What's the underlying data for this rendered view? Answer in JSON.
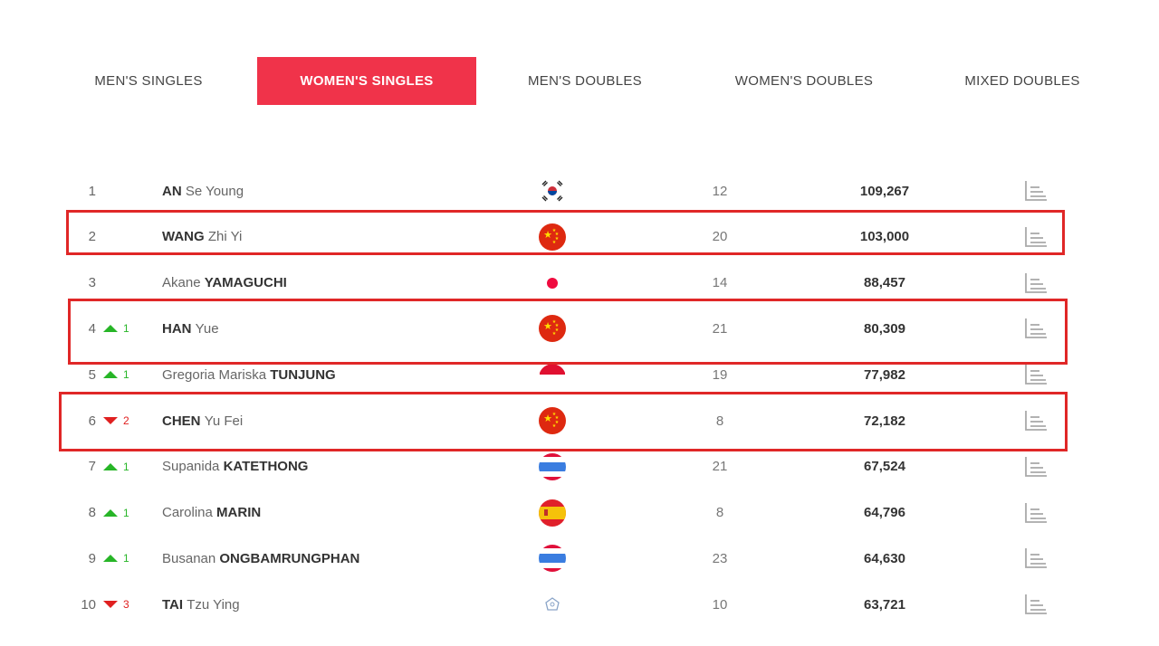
{
  "tabs": [
    {
      "label": "MEN'S SINGLES",
      "active": false
    },
    {
      "label": "WOMEN'S SINGLES",
      "active": true
    },
    {
      "label": "MEN'S DOUBLES",
      "active": false
    },
    {
      "label": "WOMEN'S DOUBLES",
      "active": false
    },
    {
      "label": "MIXED DOUBLES",
      "active": false
    }
  ],
  "rankings": [
    {
      "rank": "1",
      "move": "",
      "dir": "",
      "given": "Se Young",
      "family": "AN",
      "family_first": true,
      "flag": "korea-flag-icon",
      "tournaments": "12",
      "points": "109,267"
    },
    {
      "rank": "2",
      "move": "",
      "dir": "",
      "given": "Zhi Yi",
      "family": "WANG",
      "family_first": true,
      "flag": "china-flag-icon",
      "tournaments": "20",
      "points": "103,000"
    },
    {
      "rank": "3",
      "move": "",
      "dir": "",
      "given": "Akane",
      "family": "YAMAGUCHI",
      "family_first": false,
      "flag": "japan-flag-icon",
      "tournaments": "14",
      "points": "88,457"
    },
    {
      "rank": "4",
      "move": "1",
      "dir": "up",
      "given": "Yue",
      "family": "HAN",
      "family_first": true,
      "flag": "china-flag-icon",
      "tournaments": "21",
      "points": "80,309"
    },
    {
      "rank": "5",
      "move": "1",
      "dir": "up",
      "given": "Gregoria Mariska",
      "family": "TUNJUNG",
      "family_first": false,
      "flag": "indonesia-flag-icon",
      "tournaments": "19",
      "points": "77,982"
    },
    {
      "rank": "6",
      "move": "2",
      "dir": "down",
      "given": "Yu Fei",
      "family": "CHEN",
      "family_first": true,
      "flag": "china-flag-icon",
      "tournaments": "8",
      "points": "72,182"
    },
    {
      "rank": "7",
      "move": "1",
      "dir": "up",
      "given": "Supanida",
      "family": "KATETHONG",
      "family_first": false,
      "flag": "thailand-flag-icon",
      "tournaments": "21",
      "points": "67,524"
    },
    {
      "rank": "8",
      "move": "1",
      "dir": "up",
      "given": "Carolina",
      "family": "MARIN",
      "family_first": false,
      "flag": "spain-flag-icon",
      "tournaments": "8",
      "points": "64,796"
    },
    {
      "rank": "9",
      "move": "1",
      "dir": "up",
      "given": "Busanan",
      "family": "ONGBAMRUNGPHAN",
      "family_first": false,
      "flag": "thailand-flag-icon",
      "tournaments": "23",
      "points": "64,630"
    },
    {
      "rank": "10",
      "move": "3",
      "dir": "down",
      "given": "Tzu Ying",
      "family": "TAI",
      "family_first": true,
      "flag": "chinese-taipei-flag-icon",
      "tournaments": "10",
      "points": "63,721"
    }
  ],
  "colors": {
    "accent": "#f0334a",
    "highlight": "#e02727",
    "up": "#27b527",
    "down": "#e02020"
  }
}
